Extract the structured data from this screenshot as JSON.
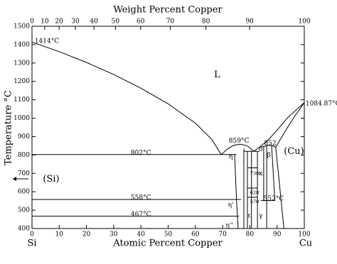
{
  "chart_data": {
    "type": "line",
    "x2label": "Weight Percent Copper",
    "xlabel": "Atomic Percent Copper",
    "ylabel": "Temperature °C",
    "left_label": "Si",
    "right_label": "Cu",
    "xlim": [
      0,
      100
    ],
    "ylim": [
      400,
      1500
    ],
    "xticks": [
      0,
      10,
      20,
      30,
      40,
      50,
      60,
      70,
      80,
      90,
      100
    ],
    "x2ticks": [
      0,
      10,
      20,
      30,
      40,
      50,
      60,
      70,
      80,
      90,
      100
    ],
    "yticks": [
      400,
      500,
      600,
      700,
      800,
      900,
      1000,
      1100,
      1200,
      1300,
      1400,
      1500
    ],
    "color": "#000000",
    "series": [
      {
        "x": [
          0,
          10,
          20,
          30,
          40,
          50,
          60,
          66,
          69.5
        ],
        "values": [
          1414,
          1362,
          1303,
          1238,
          1163,
          1078,
          973,
          885,
          802
        ]
      },
      {
        "x": [
          69.5,
          72,
          74,
          76.5,
          79,
          81.5
        ],
        "values": [
          802,
          835,
          852,
          859,
          850,
          820
        ]
      },
      {
        "x": [
          81.5,
          84,
          86.5,
          90,
          94,
          100
        ],
        "values": [
          820,
          848,
          878,
          935,
          1005,
          1084.87
        ]
      },
      {
        "x": [
          84,
          86.5,
          88,
          89.5
        ],
        "values": [
          842,
          852,
          852,
          842
        ]
      },
      {
        "x": [
          89.5,
          93,
          96,
          100
        ],
        "values": [
          842,
          930,
          1000,
          1084.87
        ]
      },
      {
        "x": [
          89.5,
          90.5,
          91.5,
          92.5
        ],
        "values": [
          842,
          700,
          550,
          400
        ]
      },
      {
        "x": [
          0,
          75
        ],
        "values": [
          802,
          802
        ]
      },
      {
        "x": [
          0,
          76.8
        ],
        "values": [
          558,
          558
        ]
      },
      {
        "x": [
          0,
          76
        ],
        "values": [
          467,
          467
        ]
      },
      {
        "x": [
          74.4,
          75.1,
          75.7
        ],
        "values": [
          805,
          558,
          400
        ]
      },
      {
        "x": [
          77.8,
          77.8
        ],
        "values": [
          835,
          400
        ]
      },
      {
        "x": [
          79.1,
          79.1
        ],
        "values": [
          820,
          400
        ]
      },
      {
        "x": [
          80.6,
          80.6
        ],
        "values": [
          820,
          400
        ]
      },
      {
        "x": [
          82.8,
          82.8
        ],
        "values": [
          820,
          400
        ]
      },
      {
        "x": [
          77.8,
          83.5
        ],
        "values": [
          820,
          820
        ]
      },
      {
        "x": [
          79.1,
          82.8
        ],
        "values": [
          730,
          730
        ]
      },
      {
        "x": [
          79.1,
          82.8
        ],
        "values": [
          620,
          620
        ]
      },
      {
        "x": [
          79.1,
          82.8
        ],
        "values": [
          570,
          570
        ]
      },
      {
        "x": [
          85.1,
          85.1
        ],
        "values": [
          845,
          552
        ]
      },
      {
        "x": [
          86.2,
          86.2
        ],
        "values": [
          852,
          400
        ]
      },
      {
        "x": [
          84,
          89.2
        ],
        "values": [
          552,
          552
        ]
      },
      {
        "x": [
          88,
          89.2
        ],
        "values": [
          852,
          552
        ]
      }
    ],
    "annotations": [
      "1414°C",
      "L",
      "1084.87°C",
      "802°C",
      "859°C",
      "852",
      "(Cu)",
      "(Si)",
      "558°C",
      "552°C",
      "467°C",
      "η",
      "η'",
      "η''",
      "δ",
      "β",
      "κ",
      "ε",
      "γ",
      "730",
      "620",
      "570"
    ]
  }
}
